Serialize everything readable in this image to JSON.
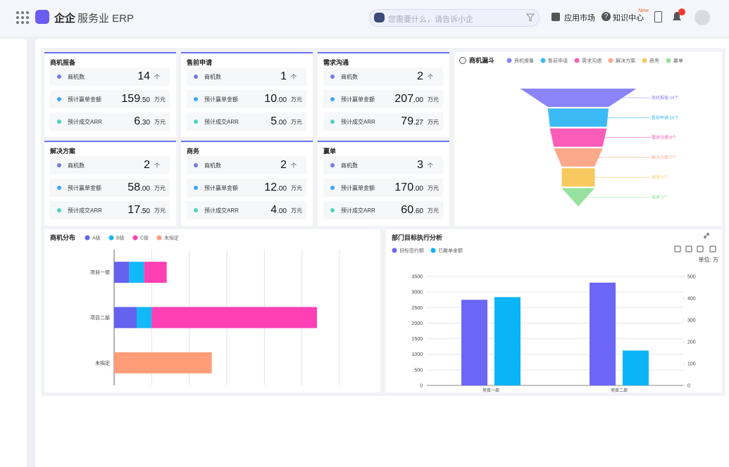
{
  "header": {
    "brand": "企企",
    "product": "服务业 ERP",
    "search_placeholder": "您需要什么，请告诉小企",
    "app_market": "应用市场",
    "knowledge_center": "知识中心",
    "new_badge": "New"
  },
  "cards": [
    {
      "title": "商机报备",
      "rows": [
        {
          "label": "商机数",
          "value": "14",
          "unit": "个"
        },
        {
          "label": "预计赢单金额",
          "value": "159.50",
          "unit": "万元"
        },
        {
          "label": "预计成交ARR",
          "value": "6.30",
          "unit": "万元"
        }
      ]
    },
    {
      "title": "售前申请",
      "rows": [
        {
          "label": "商机数",
          "value": "1",
          "unit": "个"
        },
        {
          "label": "预计赢单金额",
          "value": "10.00",
          "unit": "万元"
        },
        {
          "label": "预计成交ARR",
          "value": "5.00",
          "unit": "万元"
        }
      ]
    },
    {
      "title": "需求沟通",
      "rows": [
        {
          "label": "商机数",
          "value": "2",
          "unit": "个"
        },
        {
          "label": "预计赢单金额",
          "value": "207.00",
          "unit": "万元"
        },
        {
          "label": "预计成交ARR",
          "value": "79.27",
          "unit": "万元"
        }
      ]
    },
    {
      "title": "解决方案",
      "rows": [
        {
          "label": "商机数",
          "value": "2",
          "unit": "个"
        },
        {
          "label": "预计赢单金额",
          "value": "58.00",
          "unit": "万元"
        },
        {
          "label": "预计成交ARR",
          "value": "17.50",
          "unit": "万元"
        }
      ]
    },
    {
      "title": "商务",
      "rows": [
        {
          "label": "商机数",
          "value": "2",
          "unit": "个"
        },
        {
          "label": "预计赢单金额",
          "value": "12.00",
          "unit": "万元"
        },
        {
          "label": "预计成交ARR",
          "value": "4.00",
          "unit": "万元"
        }
      ]
    },
    {
      "title": "赢单",
      "rows": [
        {
          "label": "商机数",
          "value": "3",
          "unit": "个"
        },
        {
          "label": "预计赢单金额",
          "value": "170.00",
          "unit": "万元"
        },
        {
          "label": "预计成交ARR",
          "value": "60.60",
          "unit": "万元"
        }
      ]
    }
  ],
  "chart_data": [
    {
      "type": "funnel",
      "title": "商机漏斗",
      "categories": [
        "商机报备",
        "售前申请",
        "需求沟通",
        "解决方案",
        "商务",
        "赢单"
      ],
      "values": [
        24,
        10,
        9,
        7,
        3,
        3
      ],
      "value_labels": [
        "商机报备:24个",
        "售前申请:10个",
        "需求沟通:9个",
        "解决方案:7个",
        "商务:3个",
        "赢单:3个"
      ],
      "colors": [
        "#8a84f8",
        "#3cbaf6",
        "#fb5cb8",
        "#fca98b",
        "#f8c95f",
        "#96e29e"
      ]
    },
    {
      "type": "hbar",
      "stacked": true,
      "title": "商机分布",
      "categories": [
        "项目一部",
        "项目二部",
        "未指定"
      ],
      "series": [
        {
          "name": "A级",
          "color": "#6462ef",
          "values": [
            2,
            3,
            null
          ]
        },
        {
          "name": "B级",
          "color": "#13b8f6",
          "values": [
            2,
            2,
            null
          ]
        },
        {
          "name": "C级",
          "color": "#ff3fb4",
          "values": [
            3,
            22,
            null
          ]
        },
        {
          "name": "未指定",
          "color": "#ff9d78",
          "values": [
            null,
            null,
            13
          ]
        }
      ],
      "xlim": [
        0,
        30
      ],
      "xticks": [
        0,
        5,
        10,
        15,
        20,
        25,
        30
      ],
      "grid": true
    },
    {
      "type": "bar",
      "title": "部门目标执行分析",
      "unit_label": "单位: 万",
      "categories": [
        "项目一部",
        "项目二部"
      ],
      "series": [
        {
          "name": "目标签约额",
          "color": "#6c66f6",
          "values": [
            2750,
            3300
          ]
        },
        {
          "name": "已赢单金额",
          "color": "#0bb4f6",
          "values": [
            405,
            160
          ],
          "axis": "y2"
        }
      ],
      "ylim": [
        0,
        3500
      ],
      "yticks": [
        0,
        500,
        1000,
        1500,
        2000,
        2500,
        3000,
        3500
      ],
      "y2lim": [
        0,
        500
      ],
      "y2ticks": [
        0,
        100,
        200,
        300,
        400,
        500
      ],
      "grid": true
    }
  ]
}
